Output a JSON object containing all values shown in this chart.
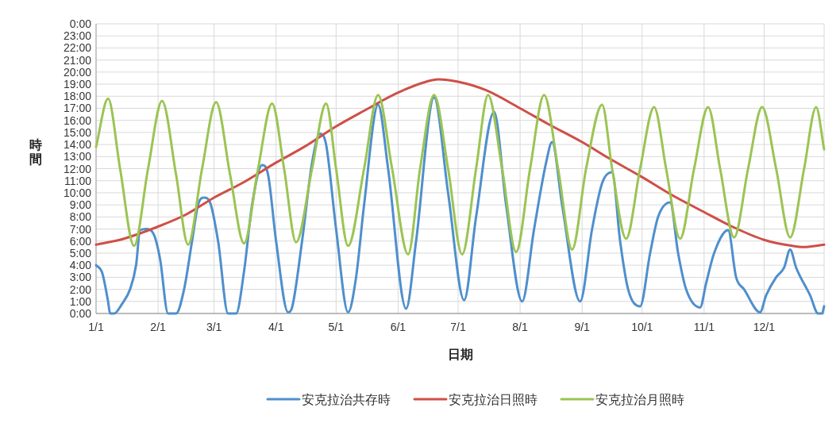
{
  "chart_data": {
    "type": "line",
    "xlabel": "日期",
    "ylabel": "時間",
    "grid": true,
    "legend": "bottom",
    "xlim": [
      "--01-01",
      "--12-31"
    ],
    "xticks": [
      {
        "value": "--01-01",
        "label": "1/1"
      },
      {
        "value": "--02-01",
        "label": "2/1"
      },
      {
        "value": "--03-01",
        "label": "3/1"
      },
      {
        "value": "--04-01",
        "label": "4/1"
      },
      {
        "value": "--05-01",
        "label": "5/1"
      },
      {
        "value": "--06-01",
        "label": "6/1"
      },
      {
        "value": "--07-01",
        "label": "7/1"
      },
      {
        "value": "--08-01",
        "label": "8/1"
      },
      {
        "value": "--09-01",
        "label": "9/1"
      },
      {
        "value": "--10-01",
        "label": "10/1"
      },
      {
        "value": "--11-01",
        "label": "11/1"
      },
      {
        "value": "--12-01",
        "label": "12/1"
      }
    ],
    "ylim": [
      0,
      24
    ],
    "yticks": [
      {
        "value": 0,
        "label": "0:00"
      },
      {
        "value": 1,
        "label": "1:00"
      },
      {
        "value": 2,
        "label": "2:00"
      },
      {
        "value": 3,
        "label": "3:00"
      },
      {
        "value": 4,
        "label": "4:00"
      },
      {
        "value": 5,
        "label": "5:00"
      },
      {
        "value": 6,
        "label": "6:00"
      },
      {
        "value": 7,
        "label": "7:00"
      },
      {
        "value": 8,
        "label": "8:00"
      },
      {
        "value": 9,
        "label": "9:00"
      },
      {
        "value": 10,
        "label": "10:00"
      },
      {
        "value": 11,
        "label": "11:00"
      },
      {
        "value": 12,
        "label": "12:00"
      },
      {
        "value": 13,
        "label": "13:00"
      },
      {
        "value": 14,
        "label": "14:00"
      },
      {
        "value": 15,
        "label": "15:00"
      },
      {
        "value": 16,
        "label": "16:00"
      },
      {
        "value": 17,
        "label": "17:00"
      },
      {
        "value": 18,
        "label": "18:00"
      },
      {
        "value": 19,
        "label": "19:00"
      },
      {
        "value": 20,
        "label": "20:00"
      },
      {
        "value": 21,
        "label": "21:00"
      },
      {
        "value": 22,
        "label": "22:00"
      },
      {
        "value": 23,
        "label": "23:00"
      },
      {
        "value": 24,
        "label": "0:00"
      }
    ],
    "series": [
      {
        "name": "安克拉治共存時",
        "color": "#4f8fcd",
        "x": [
          "--01-01",
          "--01-04",
          "--01-07",
          "--01-08",
          "--01-10",
          "--01-14",
          "--01-18",
          "--01-21",
          "--01-23",
          "--01-26",
          "--01-30",
          "--02-02",
          "--02-06",
          "--02-10",
          "--02-14",
          "--02-18",
          "--02-21",
          "--02-24",
          "--02-27",
          "--03-03",
          "--03-08",
          "--03-12",
          "--03-16",
          "--03-20",
          "--03-25",
          "--03-28",
          "--04-01",
          "--04-07",
          "--04-09",
          "--04-14",
          "--04-19",
          "--04-23",
          "--04-26",
          "--05-01",
          "--05-07",
          "--05-11",
          "--05-15",
          "--05-22",
          "--05-27",
          "--06-05",
          "--06-10",
          "--06-19",
          "--06-26",
          "--07-04",
          "--07-10",
          "--07-19",
          "--07-25",
          "--08-02",
          "--08-08",
          "--08-14",
          "--08-17",
          "--08-22",
          "--08-31",
          "--09-06",
          "--09-11",
          "--09-16",
          "--09-20",
          "--09-24",
          "--09-30",
          "--10-05",
          "--10-09",
          "--10-15",
          "--10-19",
          "--10-23",
          "--10-30",
          "--11-02",
          "--11-06",
          "--11-13",
          "--11-17",
          "--11-21",
          "--11-29",
          "--12-02",
          "--12-07",
          "--12-11",
          "--12-14",
          "--12-17",
          "--12-24",
          "--12-28",
          "--12-30",
          "--12-31"
        ],
        "values": [
          4.0,
          3.4,
          1.0,
          0,
          0,
          0.8,
          2.0,
          4.0,
          6.9,
          7.0,
          6.5,
          4.5,
          0,
          0,
          2.0,
          6.0,
          9.0,
          9.6,
          9.2,
          6.0,
          0,
          0,
          3.5,
          9.0,
          12.3,
          11.5,
          6.0,
          0.1,
          0.5,
          6.0,
          12.5,
          14.9,
          14.0,
          7.0,
          0.1,
          3.0,
          9.0,
          17.3,
          12.0,
          0.4,
          6.0,
          17.9,
          10.0,
          1.1,
          8.0,
          16.7,
          9.0,
          1.0,
          7.0,
          12.5,
          14.2,
          9.0,
          1.0,
          7.0,
          10.8,
          11.7,
          6.0,
          2.0,
          0.6,
          5.0,
          8.0,
          9.2,
          5.0,
          2.0,
          0.5,
          2.5,
          5.0,
          6.9,
          3.0,
          2.0,
          0.1,
          1.5,
          3.0,
          3.8,
          5.3,
          3.8,
          1.5,
          0,
          0,
          0.6
        ]
      },
      {
        "name": "安克拉治日照時",
        "color": "#cf4f47",
        "x": [
          "--01-01",
          "--01-15",
          "--02-01",
          "--02-15",
          "--03-01",
          "--03-15",
          "--04-01",
          "--04-15",
          "--05-01",
          "--05-15",
          "--06-01",
          "--06-15",
          "--06-21",
          "--07-01",
          "--07-15",
          "--08-01",
          "--08-15",
          "--09-01",
          "--09-15",
          "--10-01",
          "--10-15",
          "--11-01",
          "--11-15",
          "--12-01",
          "--12-15",
          "--12-21",
          "--12-31"
        ],
        "values": [
          5.7,
          6.2,
          7.2,
          8.2,
          9.6,
          10.8,
          12.5,
          13.8,
          15.5,
          16.8,
          18.3,
          19.2,
          19.4,
          19.2,
          18.5,
          17.0,
          15.7,
          14.2,
          12.8,
          11.3,
          9.9,
          8.4,
          7.2,
          6.1,
          5.6,
          5.5,
          5.7
        ]
      },
      {
        "name": "安克拉治月照時",
        "color": "#9bc453",
        "x": [
          "--01-01",
          "--01-07",
          "--01-13",
          "--01-20",
          "--01-27",
          "--02-03",
          "--02-10",
          "--02-16",
          "--02-23",
          "--03-02",
          "--03-09",
          "--03-16",
          "--03-23",
          "--03-30",
          "--04-05",
          "--04-11",
          "--04-19",
          "--04-26",
          "--05-01",
          "--05-07",
          "--05-15",
          "--05-22",
          "--05-29",
          "--06-06",
          "--06-12",
          "--06-19",
          "--06-26",
          "--07-03",
          "--07-10",
          "--07-16",
          "--07-23",
          "--07-30",
          "--08-06",
          "--08-13",
          "--08-20",
          "--08-27",
          "--09-03",
          "--09-11",
          "--09-16",
          "--09-23",
          "--09-30",
          "--10-07",
          "--10-13",
          "--10-20",
          "--10-27",
          "--11-03",
          "--11-09",
          "--11-16",
          "--11-23",
          "--11-30",
          "--12-07",
          "--12-14",
          "--12-21",
          "--12-27",
          "--12-31"
        ],
        "values": [
          13.8,
          17.8,
          12,
          5.6,
          12,
          17.6,
          11.5,
          5.7,
          12,
          17.5,
          11.5,
          5.8,
          12,
          17.4,
          12,
          5.9,
          12,
          17.4,
          12,
          5.6,
          12,
          18.1,
          12,
          4.9,
          12,
          18.1,
          12,
          4.9,
          12,
          18.1,
          12,
          5.1,
          12,
          18.1,
          12,
          5.3,
          12,
          17.3,
          12,
          6.2,
          12,
          17.1,
          12,
          6.2,
          12,
          17.1,
          12,
          6.3,
          12,
          17.1,
          12,
          6.3,
          12,
          17.1,
          13.6
        ]
      }
    ]
  }
}
